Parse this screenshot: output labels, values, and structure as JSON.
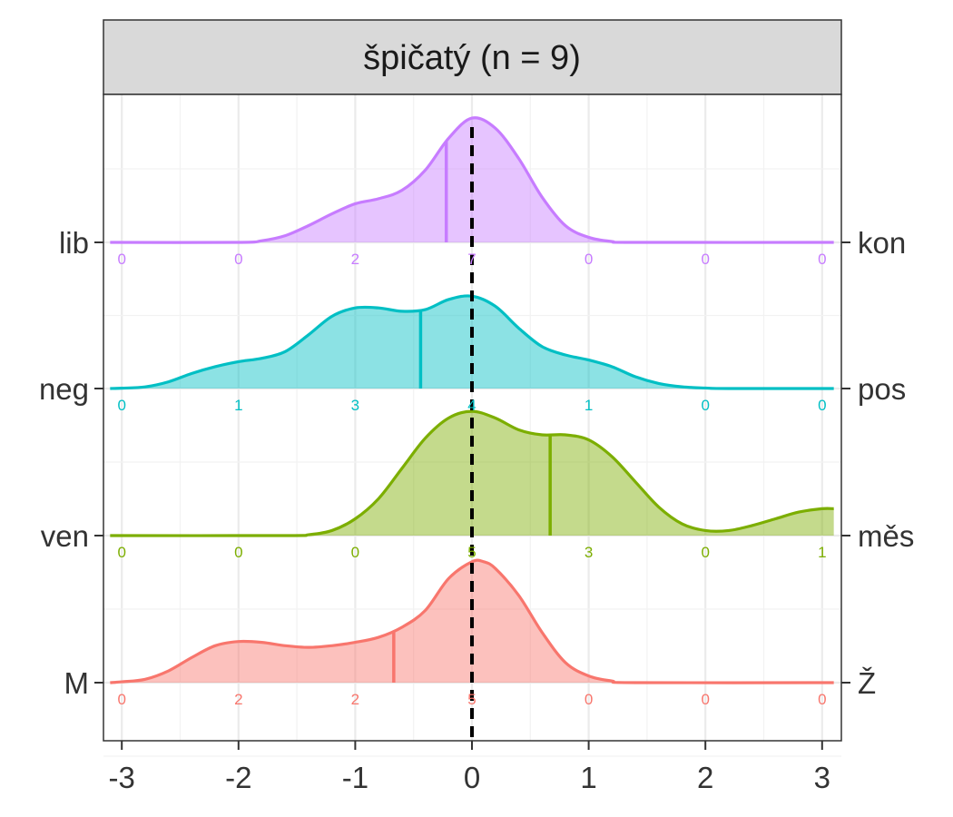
{
  "chart_data": {
    "type": "ridgeline-density",
    "title": "špičatý (n = 9)",
    "xlabel": "",
    "ylabel": "",
    "xlim": [
      -3.1,
      3.1
    ],
    "x_ticks": [
      -3,
      -2,
      -1,
      0,
      1,
      2,
      3
    ],
    "x_tick_labels": [
      "-3",
      "-2",
      "-1",
      "0",
      "1",
      "2",
      "3"
    ],
    "reference_line_x": 0,
    "grid": true,
    "legend": "none",
    "rows": [
      {
        "left_label": "M",
        "right_label": "Ž",
        "color": "#F8766D",
        "mean": -0.67,
        "counts": [
          0,
          2,
          2,
          5,
          0,
          0,
          0
        ],
        "density": [
          [
            -3.1,
            0
          ],
          [
            -3.0,
            0.005
          ],
          [
            -2.8,
            0.02
          ],
          [
            -2.6,
            0.07
          ],
          [
            -2.4,
            0.15
          ],
          [
            -2.2,
            0.22
          ],
          [
            -2.0,
            0.245
          ],
          [
            -1.8,
            0.24
          ],
          [
            -1.6,
            0.22
          ],
          [
            -1.4,
            0.21
          ],
          [
            -1.2,
            0.22
          ],
          [
            -1.0,
            0.24
          ],
          [
            -0.8,
            0.27
          ],
          [
            -0.6,
            0.33
          ],
          [
            -0.4,
            0.43
          ],
          [
            -0.2,
            0.62
          ],
          [
            0.0,
            0.72
          ],
          [
            0.1,
            0.72
          ],
          [
            0.2,
            0.68
          ],
          [
            0.4,
            0.52
          ],
          [
            0.6,
            0.3
          ],
          [
            0.8,
            0.12
          ],
          [
            1.0,
            0.04
          ],
          [
            1.2,
            0.01
          ],
          [
            1.4,
            0.0
          ],
          [
            3.1,
            0
          ]
        ]
      },
      {
        "left_label": "ven",
        "right_label": "měs",
        "color": "#7CAE00",
        "mean": 0.67,
        "counts": [
          0,
          0,
          0,
          5,
          3,
          0,
          1
        ],
        "density": [
          [
            -3.1,
            0
          ],
          [
            -1.6,
            0.0
          ],
          [
            -1.4,
            0.005
          ],
          [
            -1.2,
            0.03
          ],
          [
            -1.0,
            0.1
          ],
          [
            -0.8,
            0.22
          ],
          [
            -0.6,
            0.4
          ],
          [
            -0.4,
            0.58
          ],
          [
            -0.2,
            0.7
          ],
          [
            0.0,
            0.74
          ],
          [
            0.2,
            0.7
          ],
          [
            0.4,
            0.63
          ],
          [
            0.6,
            0.6
          ],
          [
            0.8,
            0.6
          ],
          [
            1.0,
            0.57
          ],
          [
            1.2,
            0.47
          ],
          [
            1.4,
            0.32
          ],
          [
            1.6,
            0.17
          ],
          [
            1.8,
            0.07
          ],
          [
            2.0,
            0.03
          ],
          [
            2.2,
            0.03
          ],
          [
            2.4,
            0.06
          ],
          [
            2.6,
            0.1
          ],
          [
            2.8,
            0.14
          ],
          [
            3.0,
            0.16
          ],
          [
            3.1,
            0.16
          ]
        ]
      },
      {
        "left_label": "neg",
        "right_label": "pos",
        "color": "#00BFC4",
        "mean": -0.44,
        "counts": [
          0,
          1,
          3,
          4,
          1,
          0,
          0
        ],
        "density": [
          [
            -3.1,
            0
          ],
          [
            -3.0,
            0.002
          ],
          [
            -2.8,
            0.01
          ],
          [
            -2.6,
            0.04
          ],
          [
            -2.4,
            0.09
          ],
          [
            -2.2,
            0.13
          ],
          [
            -2.0,
            0.16
          ],
          [
            -1.8,
            0.18
          ],
          [
            -1.6,
            0.22
          ],
          [
            -1.4,
            0.32
          ],
          [
            -1.2,
            0.43
          ],
          [
            -1.0,
            0.48
          ],
          [
            -0.8,
            0.48
          ],
          [
            -0.6,
            0.46
          ],
          [
            -0.4,
            0.47
          ],
          [
            -0.2,
            0.53
          ],
          [
            0.0,
            0.55
          ],
          [
            0.2,
            0.49
          ],
          [
            0.4,
            0.36
          ],
          [
            0.6,
            0.25
          ],
          [
            0.8,
            0.2
          ],
          [
            1.0,
            0.17
          ],
          [
            1.2,
            0.13
          ],
          [
            1.4,
            0.07
          ],
          [
            1.6,
            0.03
          ],
          [
            1.8,
            0.01
          ],
          [
            2.0,
            0.003
          ],
          [
            2.2,
            0.0
          ],
          [
            3.1,
            0
          ]
        ]
      },
      {
        "left_label": "lib",
        "right_label": "kon",
        "color": "#C77CFF",
        "mean": -0.22,
        "counts": [
          0,
          0,
          2,
          7,
          0,
          0,
          0
        ],
        "density": [
          [
            -3.1,
            0
          ],
          [
            -2.0,
            0.0
          ],
          [
            -1.8,
            0.01
          ],
          [
            -1.6,
            0.04
          ],
          [
            -1.4,
            0.1
          ],
          [
            -1.2,
            0.17
          ],
          [
            -1.0,
            0.23
          ],
          [
            -0.8,
            0.26
          ],
          [
            -0.6,
            0.31
          ],
          [
            -0.4,
            0.43
          ],
          [
            -0.2,
            0.62
          ],
          [
            0.0,
            0.74
          ],
          [
            0.2,
            0.68
          ],
          [
            0.4,
            0.5
          ],
          [
            0.6,
            0.27
          ],
          [
            0.8,
            0.1
          ],
          [
            1.0,
            0.03
          ],
          [
            1.2,
            0.005
          ],
          [
            1.4,
            0.0
          ],
          [
            3.1,
            0
          ]
        ]
      }
    ]
  }
}
